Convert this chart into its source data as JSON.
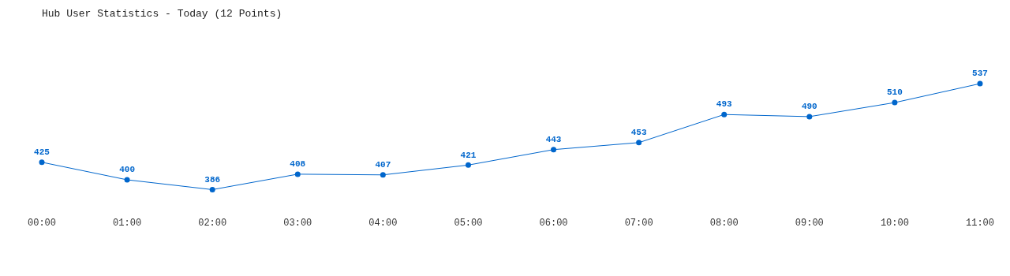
{
  "chart_data": {
    "type": "line",
    "title": "Hub User Statistics - Today (12 Points)",
    "categories": [
      "00:00",
      "01:00",
      "02:00",
      "03:00",
      "04:00",
      "05:00",
      "06:00",
      "07:00",
      "08:00",
      "09:00",
      "10:00",
      "11:00"
    ],
    "series": [
      {
        "color": "#0066cc",
        "values": [
          425,
          400,
          386,
          408,
          407,
          421,
          443,
          453,
          493,
          490,
          510,
          537
        ]
      }
    ],
    "data_labels": true,
    "grid": false,
    "legend": false,
    "marker": "circle",
    "tick_labels": "x"
  }
}
